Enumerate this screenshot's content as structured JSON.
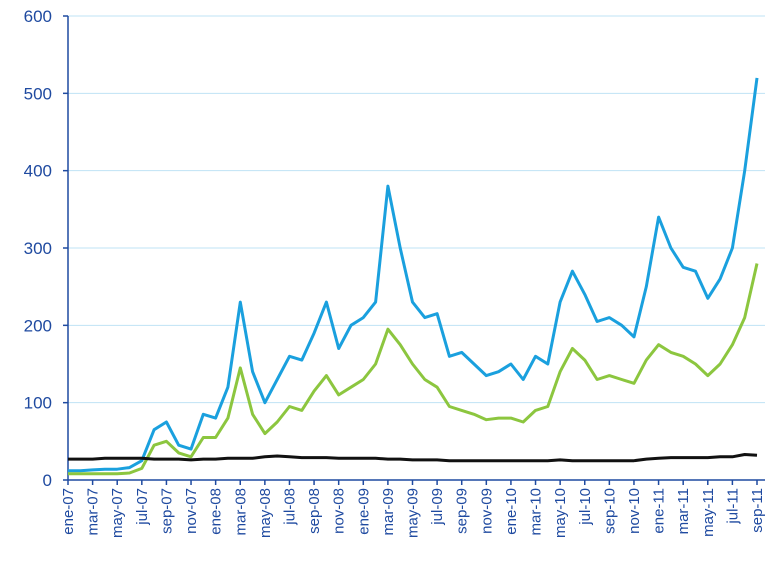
{
  "chart_data": {
    "type": "line",
    "categories": [
      "ene-07",
      null,
      "mar-07",
      null,
      "may-07",
      null,
      "jul-07",
      null,
      "sep-07",
      null,
      "nov-07",
      null,
      "ene-08",
      null,
      "mar-08",
      null,
      "may-08",
      null,
      "jul-08",
      null,
      "sep-08",
      null,
      "nov-08",
      null,
      "ene-09",
      null,
      "mar-09",
      null,
      "may-09",
      null,
      "jul-09",
      null,
      "sep-09",
      null,
      "nov-09",
      null,
      "ene-10",
      null,
      "mar-10",
      null,
      "may-10",
      null,
      "jul-10",
      null,
      "sep-10",
      null,
      "nov-10",
      null,
      "ene-11",
      null,
      "mar-11",
      null,
      "may-11",
      null,
      "jul-11",
      null,
      "sep-11"
    ],
    "series": [
      {
        "color": "#1aa0de",
        "values": [
          12,
          12,
          13,
          14,
          14,
          16,
          25,
          65,
          75,
          45,
          40,
          85,
          80,
          120,
          230,
          140,
          100,
          130,
          160,
          155,
          190,
          230,
          170,
          200,
          210,
          230,
          380,
          300,
          230,
          210,
          215,
          160,
          165,
          150,
          135,
          140,
          150,
          130,
          160,
          150,
          230,
          270,
          240,
          205,
          210,
          200,
          185,
          250,
          340,
          300,
          275,
          270,
          235,
          260,
          300,
          400,
          520
        ]
      },
      {
        "color": "#8cc63f",
        "values": [
          8,
          8,
          8,
          8,
          8,
          9,
          15,
          45,
          50,
          35,
          30,
          55,
          55,
          80,
          145,
          85,
          60,
          75,
          95,
          90,
          115,
          135,
          110,
          120,
          130,
          150,
          195,
          175,
          150,
          130,
          120,
          95,
          90,
          85,
          78,
          80,
          80,
          75,
          90,
          95,
          140,
          170,
          155,
          130,
          135,
          130,
          125,
          155,
          175,
          165,
          160,
          150,
          135,
          150,
          175,
          210,
          280
        ]
      },
      {
        "color": "#111111",
        "values": [
          27,
          27,
          27,
          28,
          28,
          28,
          28,
          27,
          27,
          27,
          26,
          27,
          27,
          28,
          28,
          28,
          30,
          31,
          30,
          29,
          29,
          29,
          28,
          28,
          28,
          28,
          27,
          27,
          26,
          26,
          26,
          25,
          25,
          25,
          25,
          25,
          25,
          25,
          25,
          25,
          26,
          25,
          25,
          25,
          25,
          25,
          25,
          27,
          28,
          29,
          29,
          29,
          29,
          30,
          30,
          33,
          32
        ]
      }
    ],
    "ylim": [
      0,
      600
    ],
    "yticks": [
      0,
      100,
      200,
      300,
      400,
      500,
      600
    ],
    "grid": true
  }
}
